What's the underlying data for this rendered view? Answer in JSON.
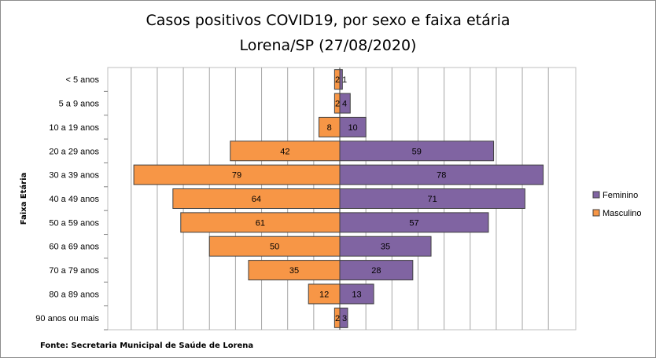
{
  "chart_data": {
    "type": "bar",
    "orientation": "horizontal-population-pyramid",
    "title_line1": "Casos positivos COVID19, por sexo e faixa etária",
    "title_line2": "Lorena/SP (27/08/2020)",
    "ylabel": "Faixa Etária",
    "xlabel": "",
    "xlim": [
      -80,
      80
    ],
    "grid": "vertical",
    "legend_position": "right",
    "categories": [
      "< 5 anos",
      "5 a 9 anos",
      "10 a 19 anos",
      "20 a 29 anos",
      "30 a 39 anos",
      "40 a 49 anos",
      "50 a 59 anos",
      "60 a 69 anos",
      "70 a 79 anos",
      "80 a 89 anos",
      "90 anos ou mais"
    ],
    "series": [
      {
        "name": "Feminino",
        "color": "#8064a2",
        "values": [
          1,
          4,
          10,
          59,
          78,
          71,
          57,
          35,
          28,
          13,
          3
        ]
      },
      {
        "name": "Masculino",
        "color": "#f79646",
        "values": [
          2,
          2,
          8,
          42,
          79,
          64,
          61,
          50,
          35,
          12,
          2
        ]
      }
    ],
    "source": "Fonte: Secretaria Municipal  de Saúde de Lorena"
  }
}
